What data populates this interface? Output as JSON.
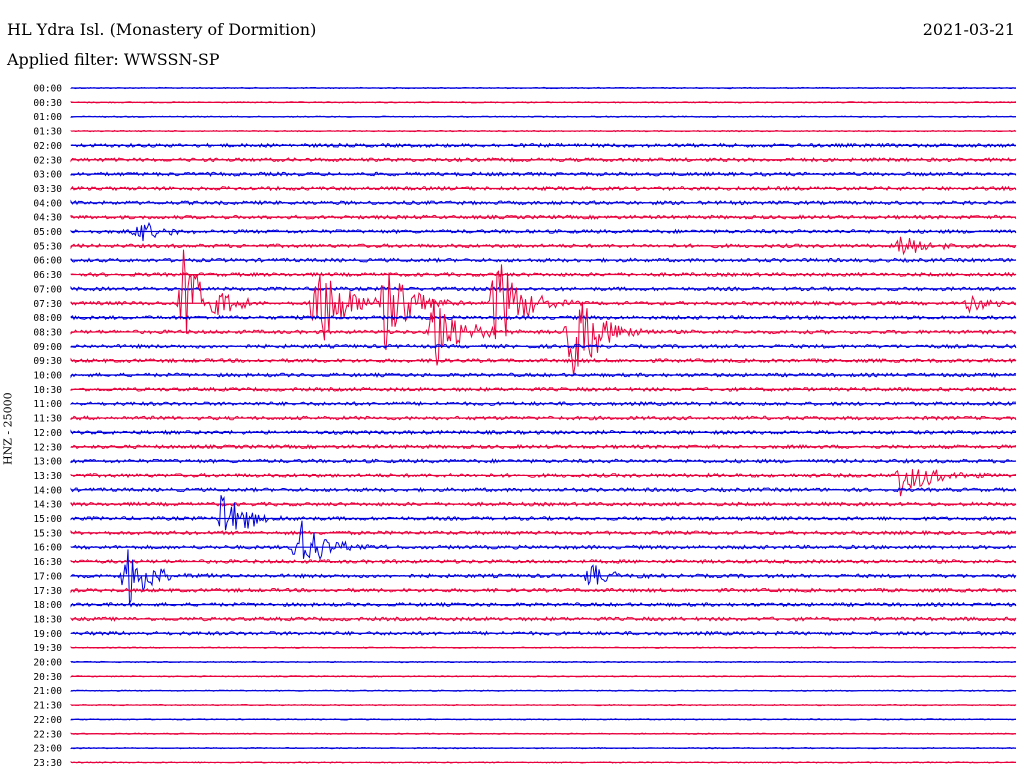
{
  "header": {
    "station": "HL Ydra Isl. (Monastery of Dormition)",
    "date": "2021-03-21",
    "filter": "Applied filter: WWSSN-SP"
  },
  "axis_label": "HNZ - 25000",
  "colors": {
    "trace_a": "#0000dd",
    "trace_b": "#e8003c"
  },
  "chart_data": {
    "type": "line",
    "title": "HL Ydra Isl. (Monastery of Dormition)",
    "subtitle": "Applied filter: WWSSN-SP",
    "ylabel": "HNZ - 25000",
    "xlabel": "",
    "date": "2021-03-21",
    "rows": [
      "00:00",
      "00:30",
      "01:00",
      "01:30",
      "02:00",
      "02:30",
      "03:00",
      "03:30",
      "04:00",
      "04:30",
      "05:00",
      "05:30",
      "06:00",
      "06:30",
      "07:00",
      "07:30",
      "08:00",
      "08:30",
      "09:00",
      "09:30",
      "10:00",
      "10:30",
      "11:00",
      "11:30",
      "12:00",
      "12:30",
      "13:00",
      "13:30",
      "14:00",
      "14:30",
      "15:00",
      "15:30",
      "16:00",
      "16:30",
      "17:00",
      "17:30",
      "18:00",
      "18:30",
      "19:00",
      "19:30",
      "20:00",
      "20:30",
      "21:00",
      "21:30",
      "22:00",
      "22:30",
      "23:00",
      "23:30"
    ],
    "series": [
      {
        "values": [
          "00:00",
          "01:00",
          "02:00",
          "03:00",
          "04:00",
          "05:00",
          "06:00",
          "07:00",
          "08:00",
          "09:00",
          "10:00",
          "11:00",
          "12:00",
          "13:00",
          "14:00",
          "15:00",
          "16:00",
          "17:00",
          "18:00",
          "19:00",
          "20:00",
          "21:00",
          "22:00",
          "23:00"
        ]
      },
      {
        "values": [
          "00:30",
          "01:30",
          "02:30",
          "03:30",
          "04:30",
          "05:30",
          "06:30",
          "07:30",
          "08:30",
          "09:30",
          "10:30",
          "11:30",
          "12:30",
          "13:30",
          "14:30",
          "15:30",
          "16:30",
          "17:30",
          "18:30",
          "19:30",
          "20:30",
          "21:30",
          "22:30",
          "23:30"
        ]
      }
    ],
    "events": [
      {
        "row": "05:00",
        "x": 0.07,
        "amp": 14
      },
      {
        "row": "07:30",
        "x": 0.12,
        "amp": 60
      },
      {
        "row": "07:30",
        "x": 0.26,
        "amp": 60
      },
      {
        "row": "07:30",
        "x": 0.33,
        "amp": 58
      },
      {
        "row": "08:30",
        "x": 0.385,
        "amp": 45
      },
      {
        "row": "07:30",
        "x": 0.45,
        "amp": 55
      },
      {
        "row": "08:30",
        "x": 0.53,
        "amp": 65
      },
      {
        "row": "13:30",
        "x": 0.88,
        "amp": 28
      },
      {
        "row": "15:00",
        "x": 0.16,
        "amp": 30
      },
      {
        "row": "16:00",
        "x": 0.24,
        "amp": 35
      },
      {
        "row": "17:00",
        "x": 0.06,
        "amp": 32
      },
      {
        "row": "17:00",
        "x": 0.55,
        "amp": 12
      },
      {
        "row": "05:30",
        "x": 0.88,
        "amp": 14
      },
      {
        "row": "07:30",
        "x": 0.95,
        "amp": 10
      }
    ]
  }
}
